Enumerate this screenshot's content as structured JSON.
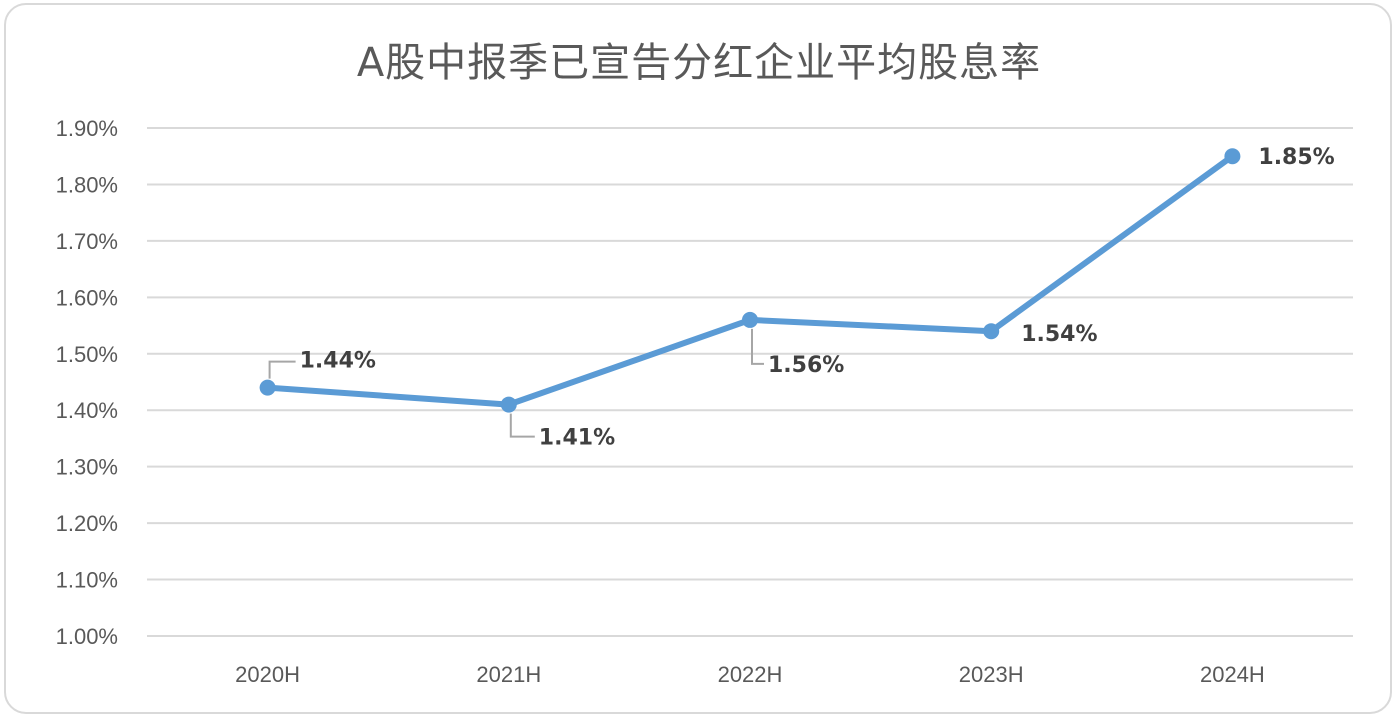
{
  "chart_data": {
    "type": "line",
    "title": "A股中报季已宣告分红企业平均股息率",
    "xlabel": "",
    "ylabel": "",
    "categories": [
      "2020H",
      "2021H",
      "2022H",
      "2023H",
      "2024H"
    ],
    "series": [
      {
        "values": [
          1.44,
          1.41,
          1.56,
          1.54,
          1.85
        ],
        "data_labels": [
          "1.44%",
          "1.41%",
          "1.56%",
          "1.54%",
          "1.85%"
        ],
        "color": "#5b9bd5"
      }
    ],
    "ylim": [
      1.0,
      1.9
    ],
    "yticks": [
      1.0,
      1.1,
      1.2,
      1.3,
      1.4,
      1.5,
      1.6,
      1.7,
      1.8,
      1.9
    ],
    "ytick_labels": [
      "1.00%",
      "1.10%",
      "1.20%",
      "1.30%",
      "1.40%",
      "1.50%",
      "1.60%",
      "1.70%",
      "1.80%",
      "1.90%"
    ],
    "grid": true,
    "legend": "none",
    "gridline_color": "#d9d9d9",
    "label_leader_color": "#a6a6a6"
  }
}
